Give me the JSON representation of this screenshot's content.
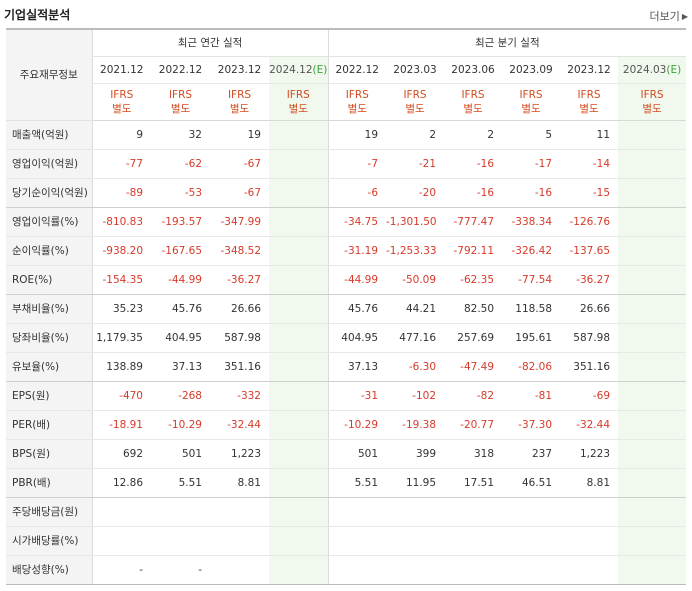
{
  "header": {
    "title": "기업실적분석",
    "more_label": "더보기"
  },
  "table": {
    "label_header": "주요재무정보",
    "group_annual": "최근 연간 실적",
    "group_quarter": "최근 분기 실적",
    "annual_periods": [
      "2021.12",
      "2022.12",
      "2023.12",
      "2024.12"
    ],
    "quarter_periods": [
      "2022.12",
      "2023.03",
      "2023.06",
      "2023.09",
      "2023.12",
      "2024.03"
    ],
    "estimate_mark": "(E)",
    "ifrs_line1": "IFRS",
    "ifrs_line2": "별도",
    "rows": [
      {
        "label": "매출액(억원)",
        "annual": [
          "9",
          "32",
          "19",
          ""
        ],
        "quarter": [
          "19",
          "2",
          "2",
          "5",
          "11",
          ""
        ]
      },
      {
        "label": "영업이익(억원)",
        "annual": [
          "-77",
          "-62",
          "-67",
          ""
        ],
        "quarter": [
          "-7",
          "-21",
          "-16",
          "-17",
          "-14",
          ""
        ]
      },
      {
        "label": "당기순이익(억원)",
        "annual": [
          "-89",
          "-53",
          "-67",
          ""
        ],
        "quarter": [
          "-6",
          "-20",
          "-16",
          "-16",
          "-15",
          ""
        ]
      },
      {
        "label": "영업이익률(%)",
        "annual": [
          "-810.83",
          "-193.57",
          "-347.99",
          ""
        ],
        "quarter": [
          "-34.75",
          "-1,301.50",
          "-777.47",
          "-338.34",
          "-126.76",
          ""
        ]
      },
      {
        "label": "순이익률(%)",
        "annual": [
          "-938.20",
          "-167.65",
          "-348.52",
          ""
        ],
        "quarter": [
          "-31.19",
          "-1,253.33",
          "-792.11",
          "-326.42",
          "-137.65",
          ""
        ]
      },
      {
        "label": "ROE(%)",
        "annual": [
          "-154.35",
          "-44.99",
          "-36.27",
          ""
        ],
        "quarter": [
          "-44.99",
          "-50.09",
          "-62.35",
          "-77.54",
          "-36.27",
          ""
        ]
      },
      {
        "label": "부채비율(%)",
        "annual": [
          "35.23",
          "45.76",
          "26.66",
          ""
        ],
        "quarter": [
          "45.76",
          "44.21",
          "82.50",
          "118.58",
          "26.66",
          ""
        ]
      },
      {
        "label": "당좌비율(%)",
        "annual": [
          "1,179.35",
          "404.95",
          "587.98",
          ""
        ],
        "quarter": [
          "404.95",
          "477.16",
          "257.69",
          "195.61",
          "587.98",
          ""
        ]
      },
      {
        "label": "유보율(%)",
        "annual": [
          "138.89",
          "37.13",
          "351.16",
          ""
        ],
        "quarter": [
          "37.13",
          "-6.30",
          "-47.49",
          "-82.06",
          "351.16",
          ""
        ]
      },
      {
        "label": "EPS(원)",
        "annual": [
          "-470",
          "-268",
          "-332",
          ""
        ],
        "quarter": [
          "-31",
          "-102",
          "-82",
          "-81",
          "-69",
          ""
        ]
      },
      {
        "label": "PER(배)",
        "annual": [
          "-18.91",
          "-10.29",
          "-32.44",
          ""
        ],
        "quarter": [
          "-10.29",
          "-19.38",
          "-20.77",
          "-37.30",
          "-32.44",
          ""
        ]
      },
      {
        "label": "BPS(원)",
        "annual": [
          "692",
          "501",
          "1,223",
          ""
        ],
        "quarter": [
          "501",
          "399",
          "318",
          "237",
          "1,223",
          ""
        ]
      },
      {
        "label": "PBR(배)",
        "annual": [
          "12.86",
          "5.51",
          "8.81",
          ""
        ],
        "quarter": [
          "5.51",
          "11.95",
          "17.51",
          "46.51",
          "8.81",
          ""
        ]
      },
      {
        "label": "주당배당금(원)",
        "annual": [
          "",
          "",
          "",
          ""
        ],
        "quarter": [
          "",
          "",
          "",
          "",
          "",
          ""
        ]
      },
      {
        "label": "시가배당률(%)",
        "annual": [
          "",
          "",
          "",
          ""
        ],
        "quarter": [
          "",
          "",
          "",
          "",
          "",
          ""
        ]
      },
      {
        "label": "배당성향(%)",
        "annual": [
          "-",
          "-",
          "",
          ""
        ],
        "quarter": [
          "",
          "",
          "",
          "",
          "",
          ""
        ]
      }
    ]
  }
}
